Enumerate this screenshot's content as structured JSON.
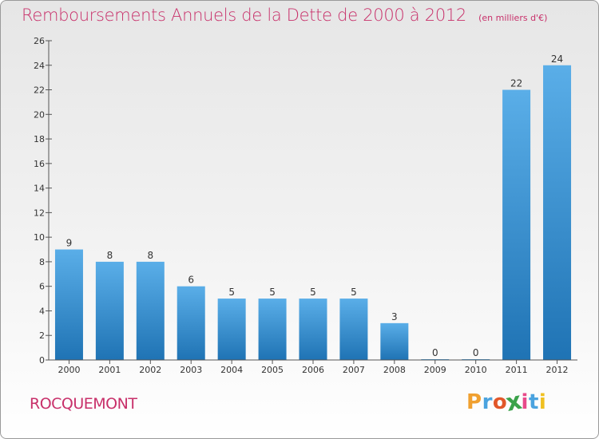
{
  "chart_data": {
    "type": "bar",
    "title": "Remboursements Annuels de la Dette de 2000 à 2012",
    "subtitle": "(en milliers d'€)",
    "categories": [
      "2000",
      "2001",
      "2002",
      "2003",
      "2004",
      "2005",
      "2006",
      "2007",
      "2008",
      "2009",
      "2010",
      "2011",
      "2012"
    ],
    "values": [
      9,
      8,
      8,
      6,
      5,
      5,
      5,
      5,
      3,
      0,
      0,
      22,
      24
    ],
    "ylim": [
      0,
      26
    ],
    "yticks": [
      0,
      2,
      4,
      6,
      8,
      10,
      12,
      14,
      16,
      18,
      20,
      22,
      24,
      26
    ],
    "grid": false,
    "bar_color": "#3a95d8"
  },
  "commune": "ROCQUEMONT",
  "logo": {
    "letters": [
      "P",
      "r",
      "o",
      "x",
      "i",
      "t",
      "i"
    ],
    "colors": [
      "#f0a030",
      "#4aa3df",
      "#e2572a",
      "#3aa24a",
      "#e84a8a",
      "#4aa3df",
      "#f0c020"
    ]
  }
}
